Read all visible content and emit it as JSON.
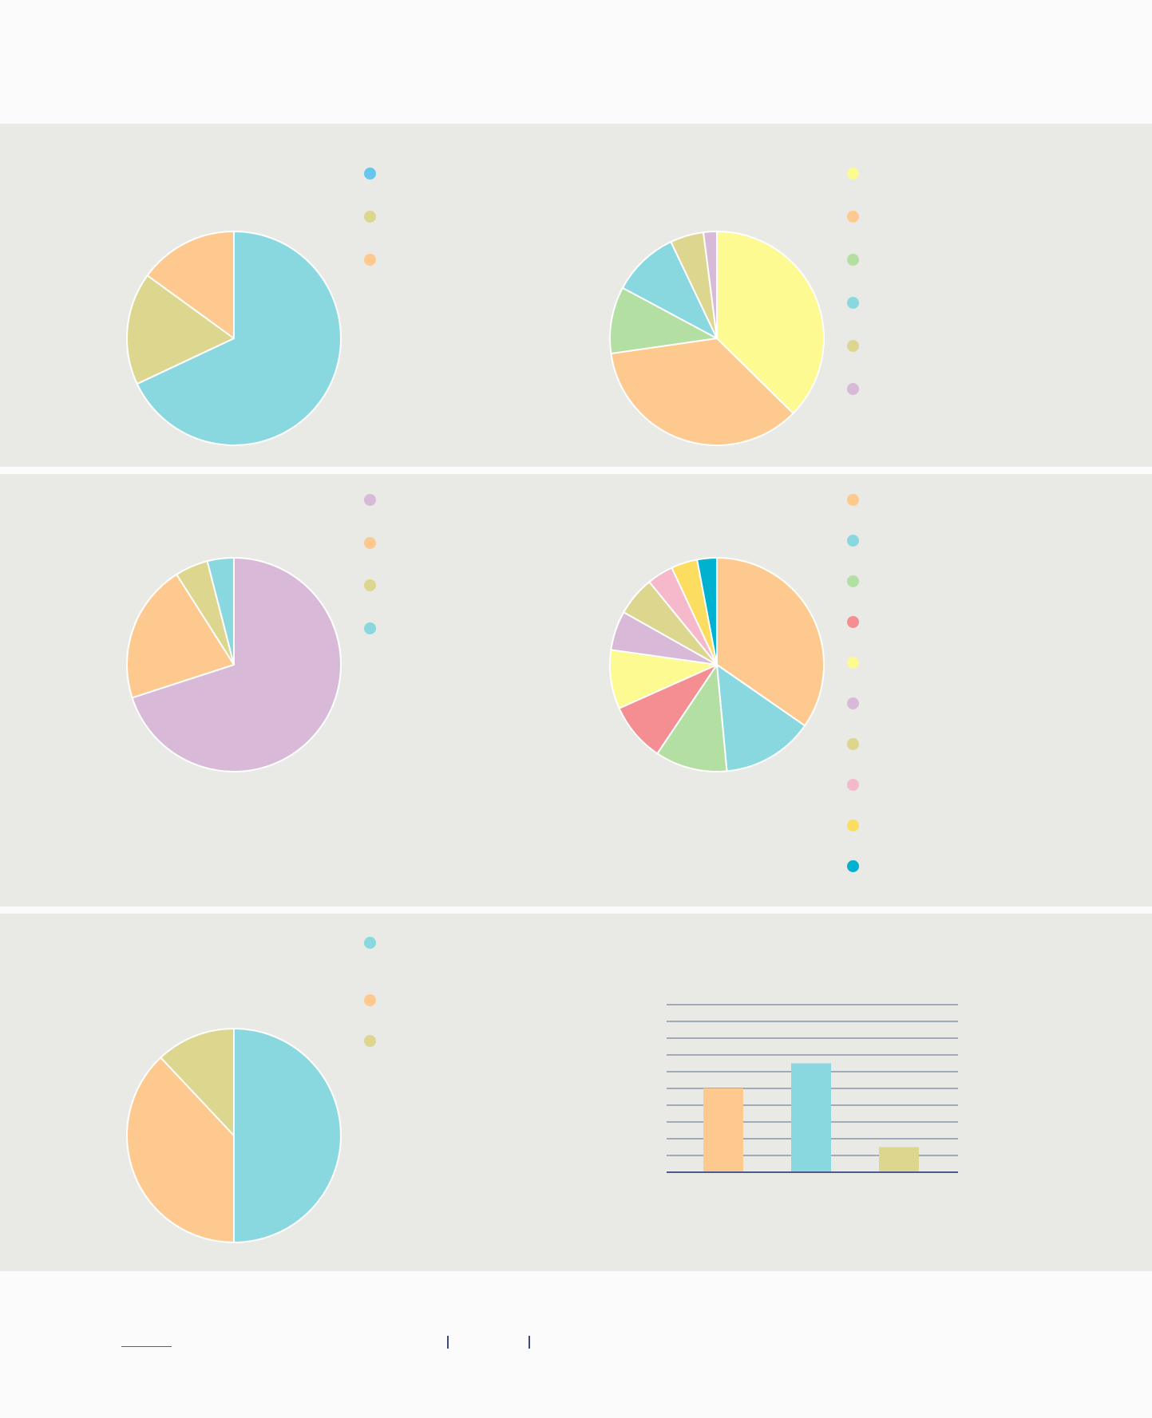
{
  "colors": {
    "background": "#fbfbfb",
    "panel": "#e9e9e5",
    "axis": "#4a5a8a",
    "grid": "#5a6a8f"
  },
  "chart_data": [
    {
      "type": "pie",
      "title": "",
      "slices": [
        {
          "value": 68,
          "color": "#89d8e0",
          "label": ""
        },
        {
          "value": 17,
          "color": "#ddd68f",
          "label": ""
        },
        {
          "value": 15,
          "color": "#fdc98f",
          "label": ""
        }
      ],
      "legend": [
        {
          "color": "#67c6ec",
          "label": ""
        },
        {
          "color": "#ddd68f",
          "label": ""
        },
        {
          "color": "#fdc98f",
          "label": ""
        }
      ]
    },
    {
      "type": "pie",
      "title": "",
      "slices": [
        {
          "value": 37,
          "color": "#fefa92",
          "label": ""
        },
        {
          "value": 35,
          "color": "#fdc98f",
          "label": ""
        },
        {
          "value": 10,
          "color": "#b4dfa3",
          "label": ""
        },
        {
          "value": 10,
          "color": "#89d8e0",
          "label": ""
        },
        {
          "value": 5,
          "color": "#ddd68f",
          "label": ""
        },
        {
          "value": 2,
          "color": "#d9b9d8",
          "label": ""
        }
      ],
      "legend": [
        {
          "color": "#fefa92",
          "label": ""
        },
        {
          "color": "#fdc98f",
          "label": ""
        },
        {
          "color": "#b4dfa3",
          "label": ""
        },
        {
          "color": "#89d8e0",
          "label": ""
        },
        {
          "color": "#ddd68f",
          "label": ""
        },
        {
          "color": "#d9b9d8",
          "label": ""
        }
      ]
    },
    {
      "type": "pie",
      "title": "",
      "slices": [
        {
          "value": 70,
          "color": "#d9b9d8",
          "label": ""
        },
        {
          "value": 21,
          "color": "#fdc98f",
          "label": ""
        },
        {
          "value": 5,
          "color": "#ddd68f",
          "label": ""
        },
        {
          "value": 4,
          "color": "#89d8e0",
          "label": ""
        }
      ],
      "legend": [
        {
          "color": "#d9b9d8",
          "label": ""
        },
        {
          "color": "#fdc98f",
          "label": ""
        },
        {
          "color": "#ddd68f",
          "label": ""
        },
        {
          "color": "#89d8e0",
          "label": ""
        }
      ]
    },
    {
      "type": "pie",
      "title": "",
      "slices": [
        {
          "value": 35,
          "color": "#fdc98f",
          "label": ""
        },
        {
          "value": 14,
          "color": "#89d8e0",
          "label": ""
        },
        {
          "value": 11,
          "color": "#b4dfa3",
          "label": ""
        },
        {
          "value": 9,
          "color": "#f58e92",
          "label": ""
        },
        {
          "value": 9,
          "color": "#fefa92",
          "label": ""
        },
        {
          "value": 6,
          "color": "#d9b9d8",
          "label": ""
        },
        {
          "value": 6,
          "color": "#ddd68f",
          "label": ""
        },
        {
          "value": 4,
          "color": "#f5b9cb",
          "label": ""
        },
        {
          "value": 4,
          "color": "#fddd5f",
          "label": ""
        },
        {
          "value": 3,
          "color": "#00b2cf",
          "label": ""
        }
      ],
      "legend": [
        {
          "color": "#fdc98f",
          "label": ""
        },
        {
          "color": "#89d8e0",
          "label": ""
        },
        {
          "color": "#b4dfa3",
          "label": ""
        },
        {
          "color": "#f58e92",
          "label": ""
        },
        {
          "color": "#fefa92",
          "label": ""
        },
        {
          "color": "#d9b9d8",
          "label": ""
        },
        {
          "color": "#ddd68f",
          "label": ""
        },
        {
          "color": "#f5b9cb",
          "label": ""
        },
        {
          "color": "#fddd5f",
          "label": ""
        },
        {
          "color": "#00b2cf",
          "label": ""
        }
      ]
    },
    {
      "type": "pie",
      "title": "",
      "slices": [
        {
          "value": 50,
          "color": "#89d8e0",
          "label": ""
        },
        {
          "value": 38,
          "color": "#fdc98f",
          "label": ""
        },
        {
          "value": 12,
          "color": "#ddd68f",
          "label": ""
        }
      ],
      "legend": [
        {
          "color": "#89d8e0",
          "label": ""
        },
        {
          "color": "#fdc98f",
          "label": ""
        },
        {
          "color": "#ddd68f",
          "label": ""
        }
      ]
    },
    {
      "type": "bar",
      "title": "",
      "categories": [
        "",
        "",
        ""
      ],
      "values": [
        5,
        6.5,
        1.5
      ],
      "colors": [
        "#fdc98f",
        "#89d8e0",
        "#ddd68f"
      ],
      "ylim": [
        0,
        10
      ],
      "gridlines": 10,
      "grid": true
    }
  ]
}
